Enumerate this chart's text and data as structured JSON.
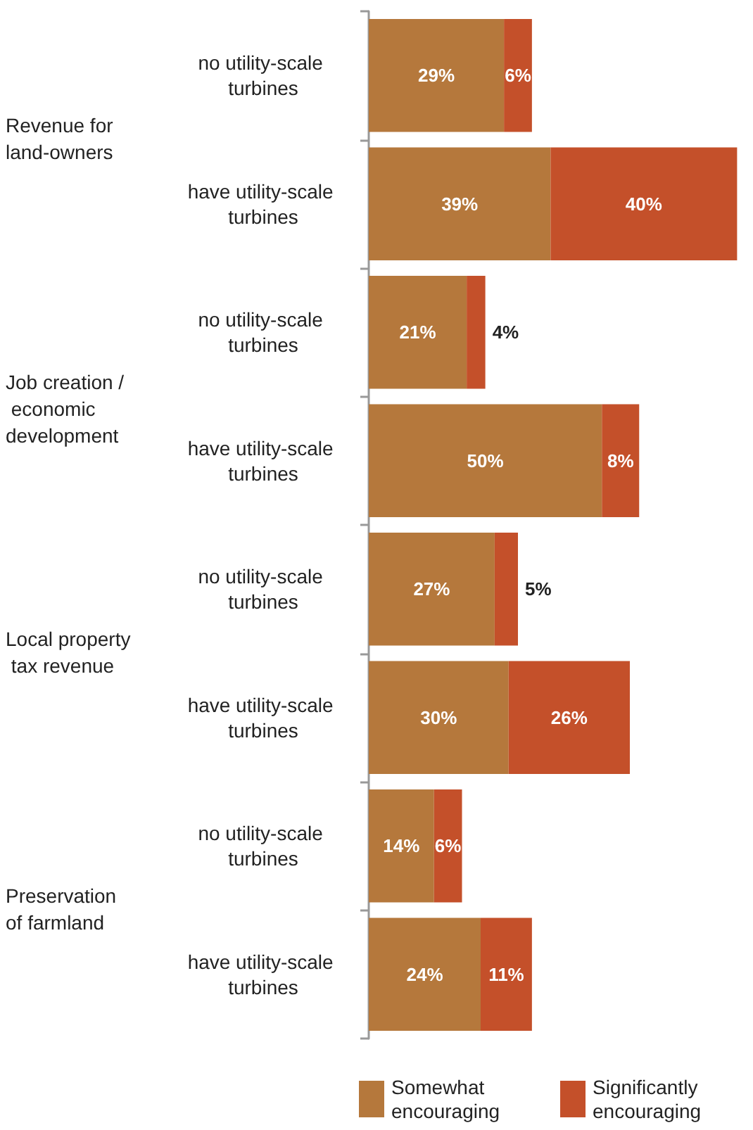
{
  "chart_data": {
    "type": "bar",
    "orientation": "horizontal",
    "stacked": true,
    "legend": "bottom",
    "categories": [
      "no utility-scale turbines",
      "have utility-scale turbines",
      "no utility-scale turbines",
      "have utility-scale turbines",
      "no utility-scale turbines",
      "have utility-scale turbines",
      "no utility-scale turbines",
      "have utility-scale turbines"
    ],
    "series": [
      {
        "name": "Somewhat encouraging",
        "color": "#b5783c",
        "values": [
          29,
          39,
          21,
          50,
          27,
          30,
          14,
          24
        ],
        "value_labels": [
          "29%",
          "39%",
          "21%",
          "50%",
          "27%",
          "30%",
          "14%",
          "24%"
        ]
      },
      {
        "name": "Significantly encouraging",
        "color": "#c4502a",
        "values": [
          6,
          40,
          4,
          8,
          5,
          26,
          6,
          11
        ],
        "value_labels": [
          "6%",
          "40%",
          "4%",
          "8%",
          "5%",
          "26%",
          "6%",
          "11%"
        ]
      }
    ],
    "annotations": [
      "Revenue for land-owners",
      "Job creation / economic development",
      "Local property tax revenue",
      "Preservation of farmland"
    ]
  }
}
